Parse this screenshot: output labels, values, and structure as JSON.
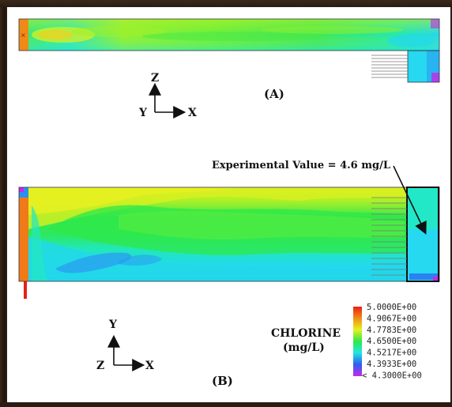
{
  "panel_a": {
    "label": "(A)",
    "axes": {
      "up": "Z",
      "left": "Y",
      "right": "X"
    }
  },
  "panel_b": {
    "label": "(B)",
    "axes": {
      "up": "Y",
      "left": "Z",
      "right": "X"
    },
    "annotation": "Experimental Value = 4.6 mg/L"
  },
  "legend": {
    "title_line1": "CHLORINE",
    "title_line2": "(mg/L)",
    "entries": [
      {
        "text": "5.0000E+00",
        "color": "#e8201a"
      },
      {
        "text": "4.9067E+00",
        "color": "#f08a16"
      },
      {
        "text": "4.7783E+00",
        "color": "#e8f020"
      },
      {
        "text": "4.6500E+00",
        "color": "#2ee84a"
      },
      {
        "text": "4.5217E+00",
        "color": "#22e8e0"
      },
      {
        "text": "4.3933E+00",
        "color": "#2a60f0"
      },
      {
        "text": "< 4.3000E+00",
        "color": "#c828e8"
      }
    ]
  }
}
